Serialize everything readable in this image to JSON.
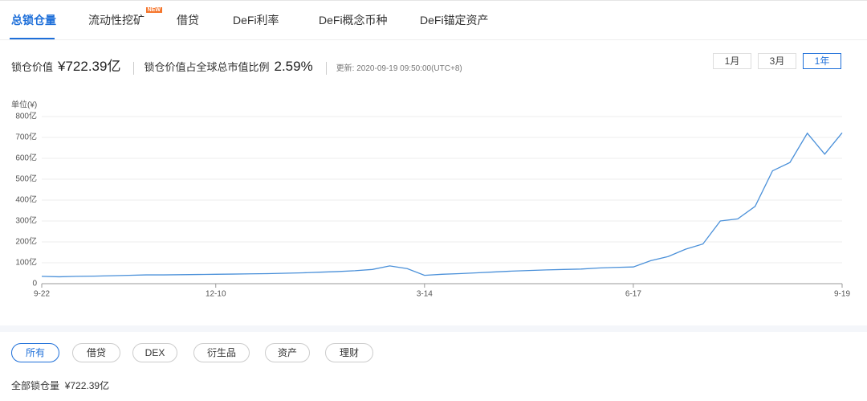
{
  "tabs": [
    {
      "label": "总锁仓量"
    },
    {
      "label": "流动性挖矿",
      "badge": "NEW"
    },
    {
      "label": "借贷"
    },
    {
      "label": "DeFi利率"
    },
    {
      "label": "DeFi概念币种"
    },
    {
      "label": "DeFi锚定资产"
    }
  ],
  "stats": {
    "tvl_label": "锁仓价值",
    "tvl_value": "¥722.39亿",
    "ratio_label": "锁仓价值占全球总市值比例",
    "ratio_value": "2.59%",
    "updated": "更新: 2020-09-19 09:50:00(UTC+8)"
  },
  "ranges": [
    "1月",
    "3月",
    "1年"
  ],
  "chart_data": {
    "type": "line",
    "y_unit": "单位(¥)",
    "categories": [
      "9-22",
      null,
      null,
      null,
      null,
      null,
      null,
      null,
      null,
      null,
      "12-10",
      null,
      null,
      null,
      null,
      null,
      null,
      null,
      null,
      null,
      null,
      null,
      "3-14",
      null,
      null,
      null,
      null,
      null,
      null,
      null,
      null,
      null,
      null,
      null,
      "6-17",
      null,
      null,
      null,
      null,
      null,
      null,
      null,
      null,
      null,
      null,
      null,
      "9-19"
    ],
    "series": [
      {
        "color": "#4a90d9",
        "values": [
          35,
          33,
          35,
          36,
          38,
          40,
          42,
          42,
          43,
          44,
          45,
          46,
          47,
          48,
          50,
          52,
          55,
          58,
          62,
          68,
          85,
          72,
          40,
          45,
          48,
          52,
          56,
          60,
          63,
          66,
          68,
          70,
          75,
          78,
          80,
          110,
          130,
          165,
          190,
          300,
          310,
          370,
          540,
          580,
          720,
          620,
          722
        ]
      }
    ],
    "ylim": [
      0,
      800
    ],
    "yticks": [
      0,
      {
        "value": 100,
        "label": "100亿"
      },
      {
        "value": 200,
        "label": "200亿"
      },
      {
        "value": 300,
        "label": "300亿"
      },
      {
        "value": 400,
        "label": "400亿"
      },
      {
        "value": 500,
        "label": "500亿"
      },
      {
        "value": 600,
        "label": "600亿"
      },
      {
        "value": 700,
        "label": "700亿"
      },
      {
        "value": 800,
        "label": "800亿"
      }
    ],
    "grid": true
  },
  "filters": [
    "所有",
    "借贷",
    "DEX",
    "衍生品",
    "资产",
    "理财"
  ],
  "footer": {
    "label": "全部锁仓量",
    "value": "¥722.39亿"
  }
}
